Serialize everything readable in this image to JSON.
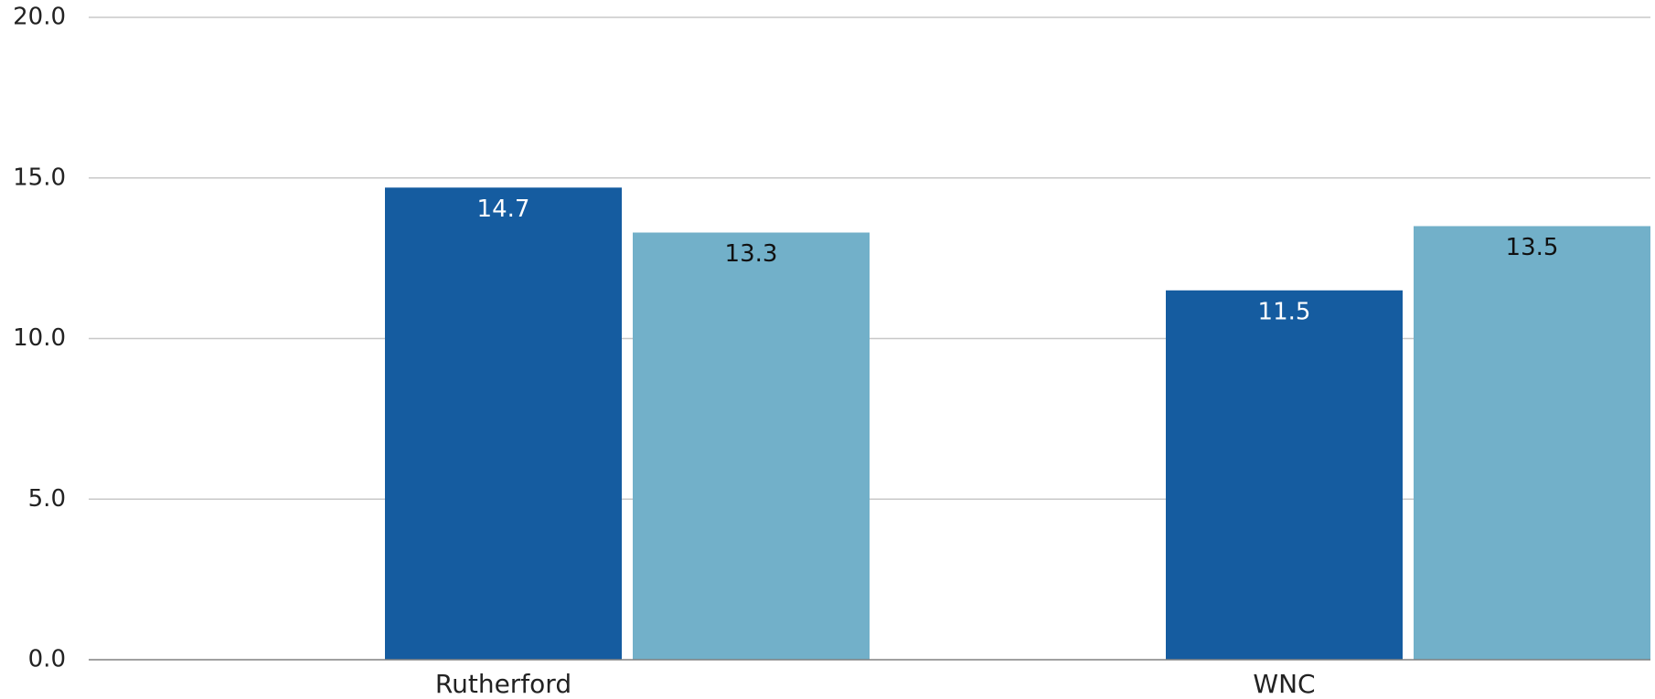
{
  "chart_data": {
    "type": "bar",
    "categories": [
      "Rutherford",
      "WNC"
    ],
    "series": [
      {
        "values": [
          14.7,
          11.5
        ],
        "color": "#155ca0",
        "label_color": "#ffffff"
      },
      {
        "values": [
          13.3,
          13.5
        ],
        "color": "#72b0c9",
        "label_color": "#111111"
      }
    ],
    "ylim": [
      0,
      20
    ],
    "yticks": [
      "0.0",
      "5.0",
      "10.0",
      "15.0",
      "20.0"
    ],
    "data_labels": [
      [
        "14.7",
        "11.5"
      ],
      [
        "13.3",
        "13.5"
      ]
    ],
    "grid": true,
    "title": "",
    "xlabel": "",
    "ylabel": ""
  }
}
